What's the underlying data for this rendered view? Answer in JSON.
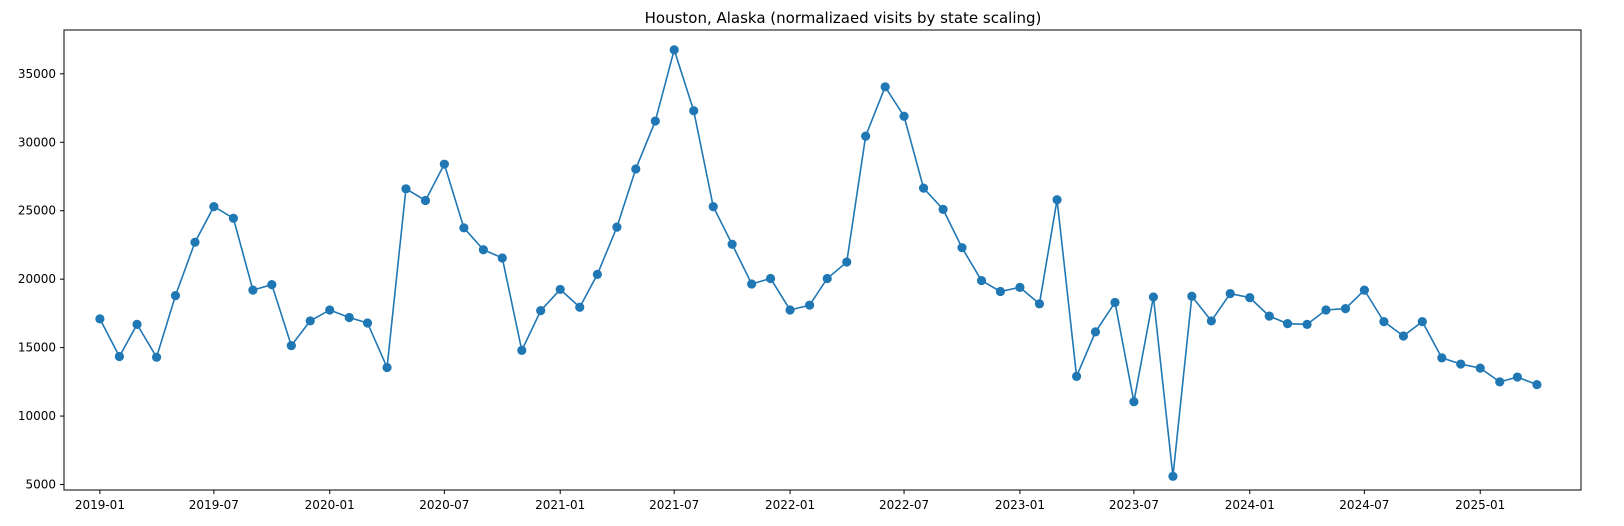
{
  "chart_data": {
    "type": "line",
    "title": "Houston, Alaska (normalizaed visits by state scaling)",
    "xlabel": "",
    "ylabel": "",
    "color": "#1f77b4",
    "marker": "circle",
    "grid": false,
    "legend": "none",
    "xlim": [
      "2018-11-05",
      "2025-06-10"
    ],
    "ylim": [
      4600,
      38200
    ],
    "x_ticks": [
      "2019-01",
      "2019-07",
      "2020-01",
      "2020-07",
      "2021-01",
      "2021-07",
      "2022-01",
      "2022-07",
      "2023-01",
      "2023-07",
      "2024-01",
      "2024-07",
      "2025-01"
    ],
    "y_ticks": [
      5000,
      10000,
      15000,
      20000,
      25000,
      30000,
      35000
    ],
    "series": [
      {
        "x": [
          "2019-01",
          "2019-02",
          "2019-03",
          "2019-04",
          "2019-05",
          "2019-06",
          "2019-07",
          "2019-08",
          "2019-09",
          "2019-10",
          "2019-11",
          "2019-12",
          "2020-01",
          "2020-02",
          "2020-03",
          "2020-04",
          "2020-05",
          "2020-06",
          "2020-07",
          "2020-08",
          "2020-09",
          "2020-10",
          "2020-11",
          "2020-12",
          "2021-01",
          "2021-02",
          "2021-03",
          "2021-04",
          "2021-05",
          "2021-06",
          "2021-07",
          "2021-08",
          "2021-09",
          "2021-10",
          "2021-11",
          "2021-12",
          "2022-01",
          "2022-02",
          "2022-03",
          "2022-04",
          "2022-05",
          "2022-06",
          "2022-07",
          "2022-08",
          "2022-09",
          "2022-10",
          "2022-11",
          "2022-12",
          "2023-01",
          "2023-02",
          "2023-03",
          "2023-04",
          "2023-05",
          "2023-06",
          "2023-07",
          "2023-08",
          "2023-09",
          "2023-10",
          "2023-11",
          "2023-12",
          "2024-01",
          "2024-02",
          "2024-03",
          "2024-04",
          "2024-05",
          "2024-06",
          "2024-07",
          "2024-08",
          "2024-09",
          "2024-10",
          "2024-11",
          "2024-12",
          "2025-01",
          "2025-02",
          "2025-03",
          "2025-04"
        ],
        "values": [
          17100,
          14350,
          16700,
          14300,
          18800,
          22700,
          25300,
          24450,
          19200,
          19600,
          15150,
          16950,
          17750,
          17200,
          16800,
          13550,
          26600,
          25750,
          28400,
          23750,
          22150,
          21550,
          14800,
          17700,
          19250,
          17950,
          20350,
          23800,
          28050,
          31550,
          36750,
          32300,
          25300,
          22550,
          19650,
          20050,
          17750,
          18100,
          20050,
          21250,
          30450,
          34050,
          31900,
          26650,
          25100,
          22300,
          19900,
          19100,
          19400,
          18200,
          25800,
          12900,
          16150,
          18300,
          11050,
          18700,
          5600,
          18750,
          16950,
          18950,
          18650,
          17300,
          16750,
          16700,
          17750,
          17850,
          19200,
          16900,
          15850,
          16900,
          14250,
          13800,
          13500,
          12500,
          12850,
          12300
        ]
      }
    ]
  }
}
